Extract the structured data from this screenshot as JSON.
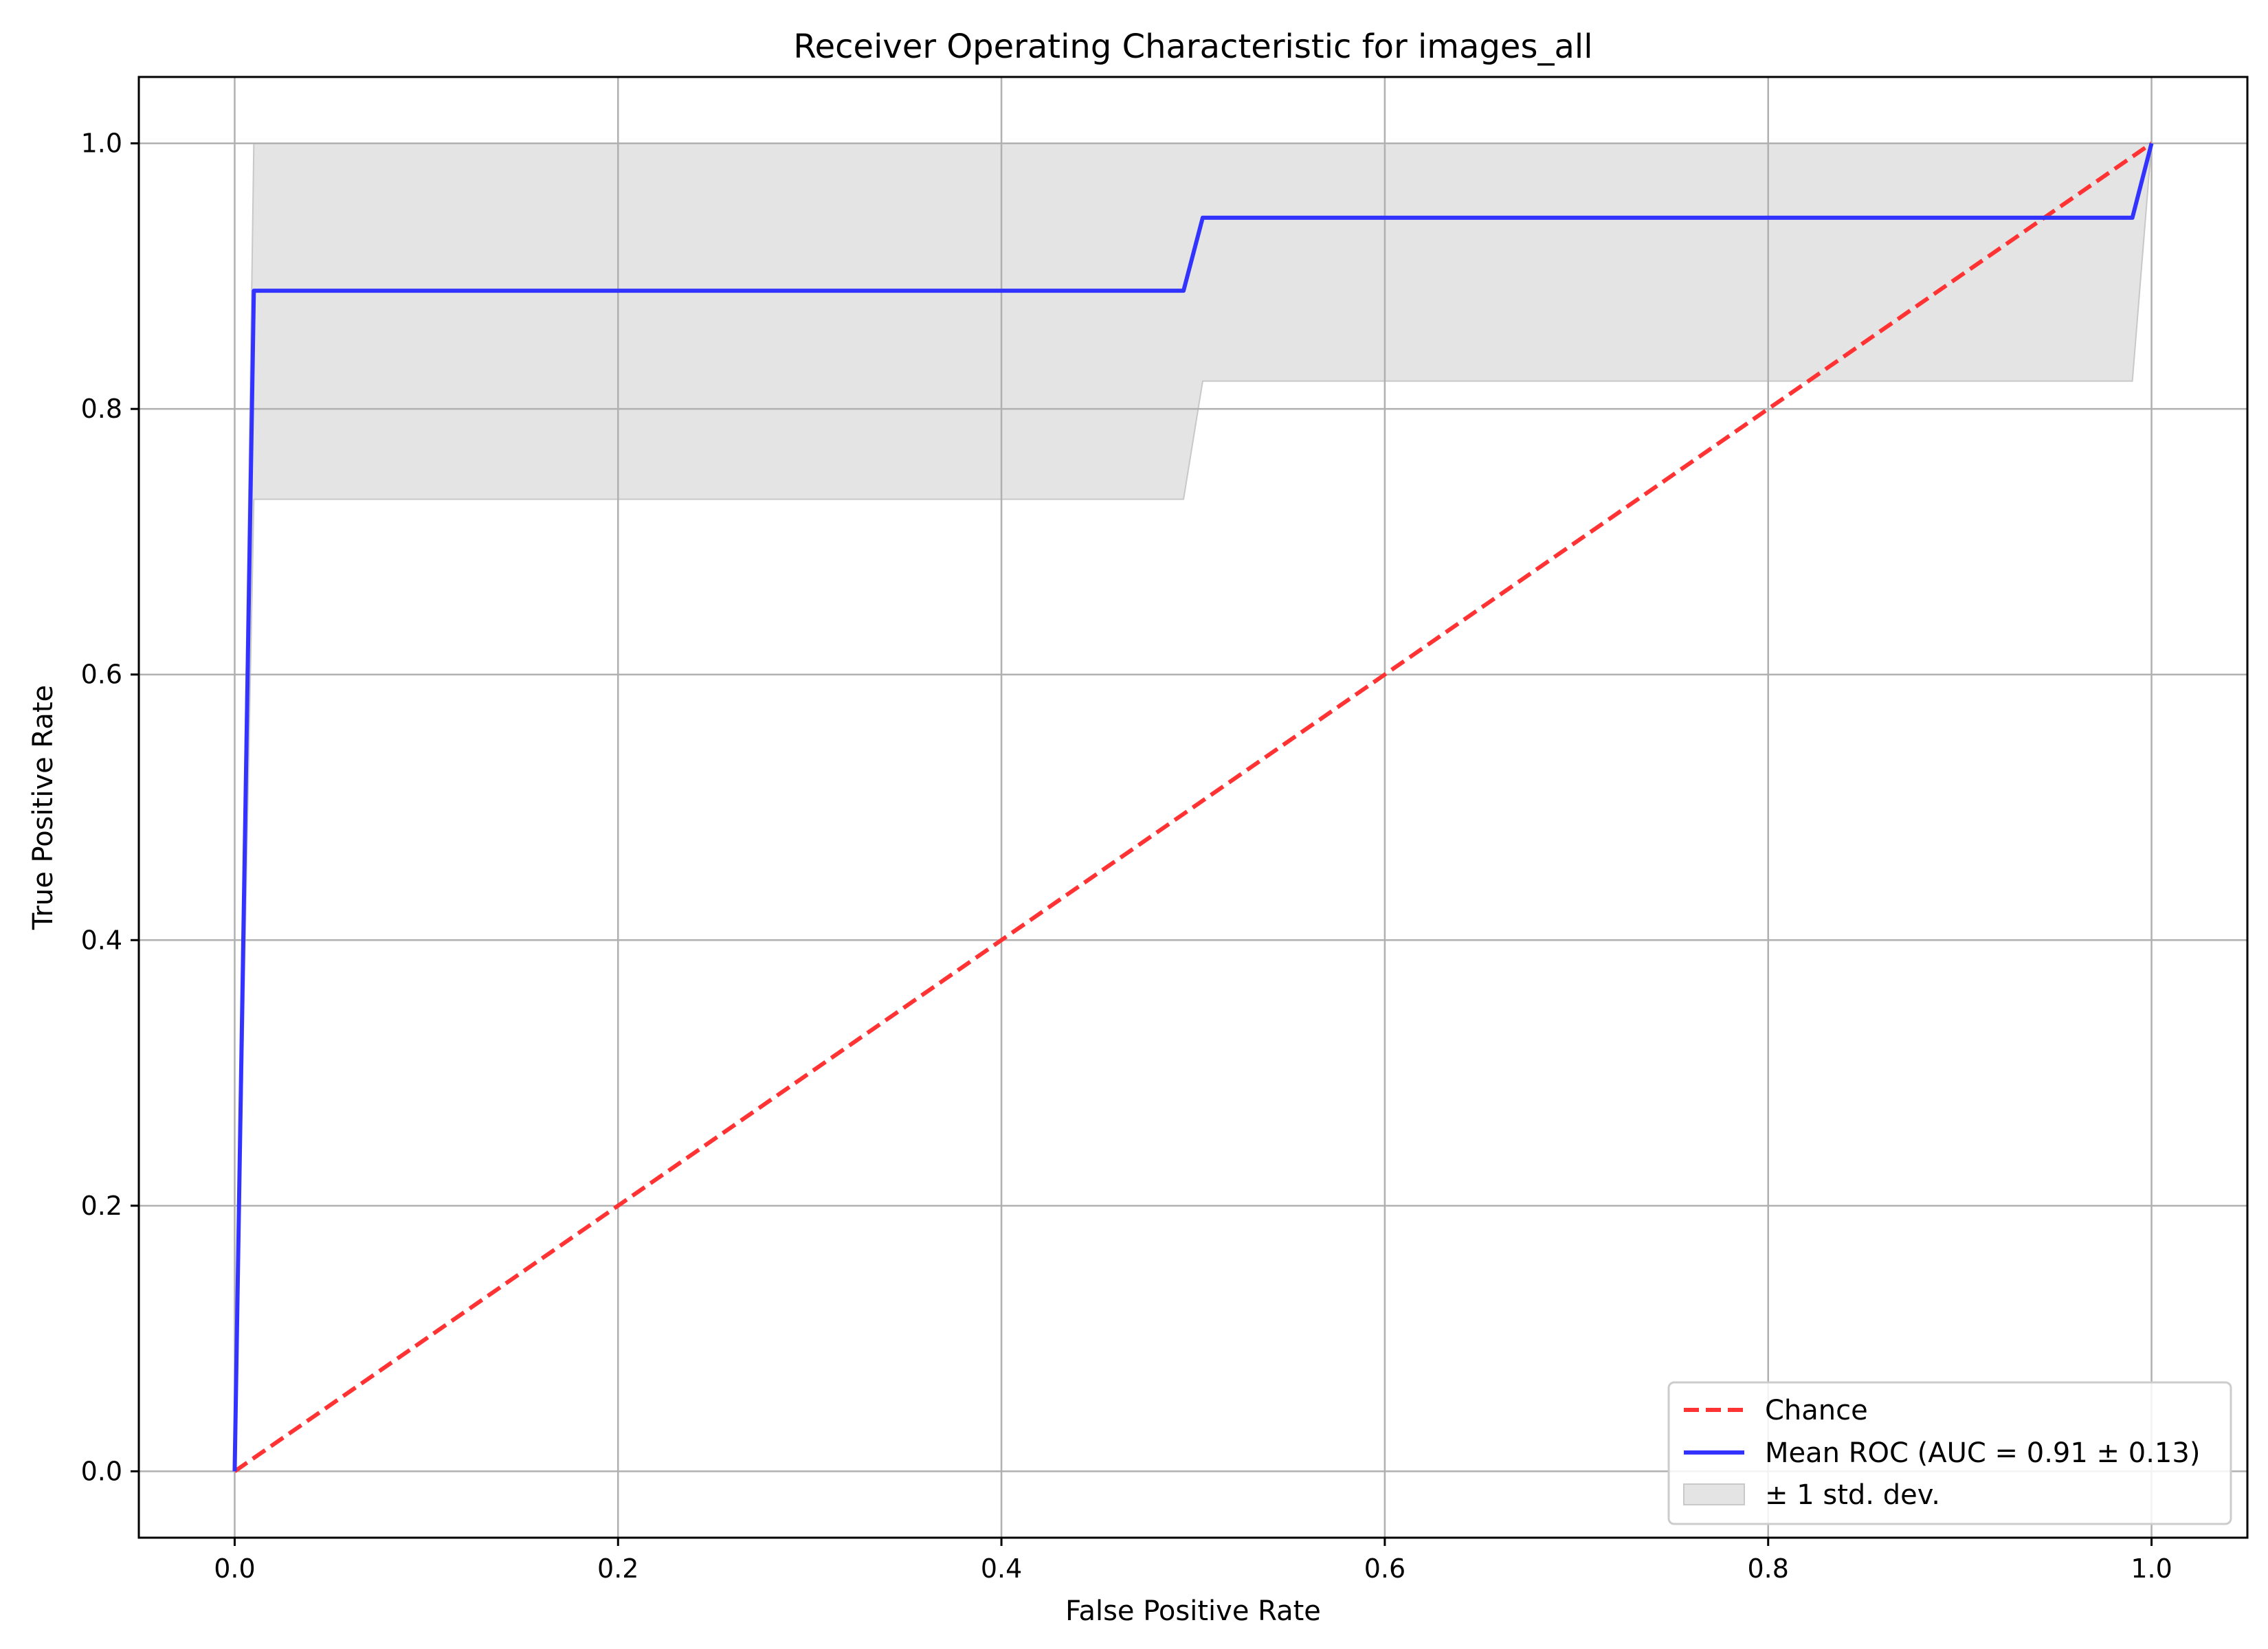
{
  "chart_data": {
    "type": "line",
    "title": "Receiver Operating Characteristic for images_all",
    "xlabel": "False Positive Rate",
    "ylabel": "True Positive Rate",
    "xlim": [
      -0.05,
      1.05
    ],
    "ylim": [
      -0.05,
      1.05
    ],
    "xticks": [
      "0.0",
      "0.2",
      "0.4",
      "0.6",
      "0.8",
      "1.0"
    ],
    "yticks": [
      "0.0",
      "0.2",
      "0.4",
      "0.6",
      "0.8",
      "1.0"
    ],
    "grid": true,
    "legend_position": "lower right",
    "series": [
      {
        "name": "Chance",
        "style": "dashed",
        "color": "#ff3333",
        "x": [
          0,
          1
        ],
        "y": [
          0,
          1
        ]
      },
      {
        "name": "Mean ROC (AUC = 0.91 ± 0.13)",
        "style": "solid",
        "color": "#3333ff",
        "x": [
          0,
          0.01,
          0.495,
          0.505,
          0.99,
          1.0
        ],
        "y": [
          0,
          0.889,
          0.889,
          0.944,
          0.944,
          1.0
        ]
      }
    ],
    "band": {
      "name": "± 1 std. dev.",
      "color": "#d9d9d9",
      "x": [
        0,
        0.01,
        0.495,
        0.505,
        0.99,
        1.0
      ],
      "upper": [
        0,
        1.0,
        1.0,
        1.0,
        1.0,
        1.0
      ],
      "lower": [
        0,
        0.732,
        0.732,
        0.821,
        0.821,
        1.0
      ]
    }
  }
}
